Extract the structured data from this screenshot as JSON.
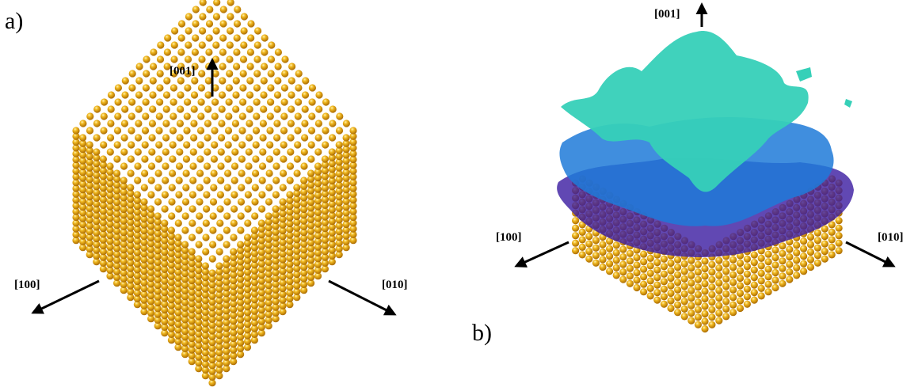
{
  "panels": [
    {
      "label": "a)",
      "axes": {
        "z": "[001]",
        "x": "[100]",
        "y": "[010]"
      }
    },
    {
      "label": "b)",
      "axes": {
        "z": "[001]",
        "x": "[100]",
        "y": "[010]"
      }
    }
  ]
}
